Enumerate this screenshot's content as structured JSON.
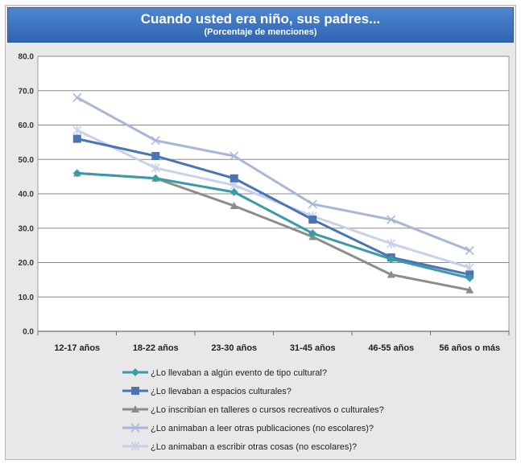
{
  "chart_data": {
    "type": "line",
    "title": "Cuando usted era niño, sus padres...",
    "subtitle": "(Porcentaje de menciones)",
    "categories": [
      "12-17 años",
      "18-22 años",
      "23-30 años",
      "31-45 años",
      "46-55 años",
      "56 años o más"
    ],
    "ylim": [
      0,
      80
    ],
    "yticks": [
      "0.0",
      "10.0",
      "20.0",
      "30.0",
      "40.0",
      "50.0",
      "60.0",
      "70.0",
      "80.0"
    ],
    "grid": true,
    "legend_position": "bottom",
    "series": [
      {
        "name": "¿Lo llevaban a algún evento de tipo cultural?",
        "color": "#3a9aa6",
        "marker": "diamond",
        "values": [
          46.0,
          44.5,
          40.5,
          28.5,
          21.0,
          15.5
        ]
      },
      {
        "name": "¿Lo llevaban a espacios culturales?",
        "color": "#4a74b4",
        "marker": "square",
        "values": [
          56.0,
          51.0,
          44.5,
          32.5,
          21.5,
          16.5
        ]
      },
      {
        "name": "¿Lo inscribían en talleres o cursos recreativos o culturales?",
        "color": "#8c8c8c",
        "marker": "triangle",
        "values": [
          46.0,
          44.5,
          36.5,
          27.5,
          16.5,
          12.0
        ]
      },
      {
        "name": "¿Lo animaban a leer otras publicaciones (no escolares)?",
        "color": "#a9b6dc",
        "marker": "x",
        "values": [
          68.0,
          55.5,
          51.0,
          37.0,
          32.5,
          23.5
        ]
      },
      {
        "name": "¿Lo animaban a escribir otras cosas (no escolares)?",
        "color": "#c9d1ea",
        "marker": "star",
        "values": [
          58.5,
          47.5,
          42.5,
          33.5,
          25.5,
          18.5
        ]
      }
    ]
  }
}
